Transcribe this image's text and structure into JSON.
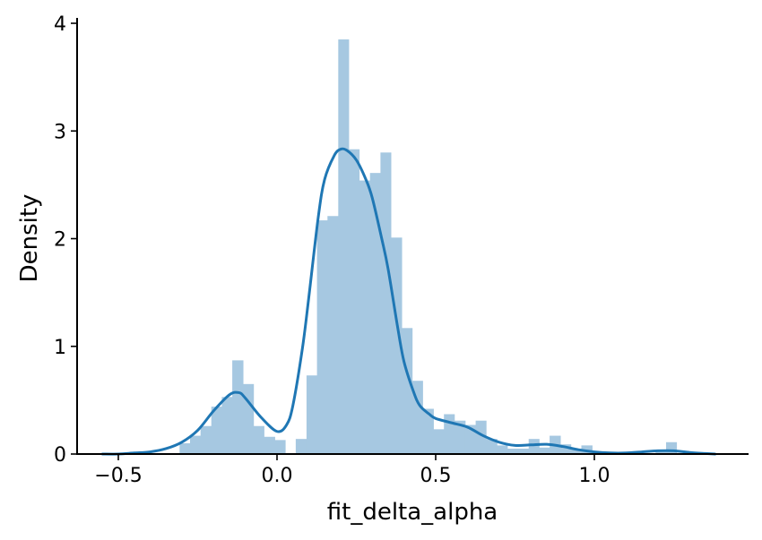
{
  "chart_data": {
    "type": "histogram",
    "title": "",
    "xlabel": "fit_delta_alpha",
    "ylabel": "Density",
    "xlim": [
      -0.6,
      1.5
    ],
    "ylim": [
      0,
      4.05
    ],
    "grid": false,
    "legend": "none",
    "x_ticks": [
      -0.5,
      0.0,
      0.5,
      1.0
    ],
    "x_tick_labels": [
      "−0.5",
      "0.0",
      "0.5",
      "1.0"
    ],
    "y_ticks": [
      0,
      1,
      2,
      3,
      4
    ],
    "y_tick_labels": [
      "0",
      "1",
      "2",
      "3",
      "4"
    ],
    "colors": {
      "bars": "#a6c8e1",
      "kde": "#1f77b4",
      "axes": "#000000"
    },
    "histogram": {
      "bin_width": 0.0333,
      "bins": [
        {
          "x0": -0.307,
          "x1": -0.274,
          "density": 0.1
        },
        {
          "x0": -0.274,
          "x1": -0.241,
          "density": 0.17
        },
        {
          "x0": -0.241,
          "x1": -0.207,
          "density": 0.26
        },
        {
          "x0": -0.207,
          "x1": -0.174,
          "density": 0.44
        },
        {
          "x0": -0.174,
          "x1": -0.141,
          "density": 0.53
        },
        {
          "x0": -0.141,
          "x1": -0.107,
          "density": 0.87
        },
        {
          "x0": -0.107,
          "x1": -0.074,
          "density": 0.65
        },
        {
          "x0": -0.074,
          "x1": -0.041,
          "density": 0.26
        },
        {
          "x0": -0.041,
          "x1": -0.007,
          "density": 0.16
        },
        {
          "x0": -0.007,
          "x1": 0.026,
          "density": 0.13
        },
        {
          "x0": 0.026,
          "x1": 0.059,
          "density": 0.0
        },
        {
          "x0": 0.059,
          "x1": 0.093,
          "density": 0.14
        },
        {
          "x0": 0.093,
          "x1": 0.126,
          "density": 0.73
        },
        {
          "x0": 0.126,
          "x1": 0.159,
          "density": 2.17
        },
        {
          "x0": 0.159,
          "x1": 0.193,
          "density": 2.21
        },
        {
          "x0": 0.193,
          "x1": 0.226,
          "density": 3.85
        },
        {
          "x0": 0.226,
          "x1": 0.259,
          "density": 2.83
        },
        {
          "x0": 0.259,
          "x1": 0.293,
          "density": 2.54
        },
        {
          "x0": 0.293,
          "x1": 0.326,
          "density": 2.61
        },
        {
          "x0": 0.326,
          "x1": 0.359,
          "density": 2.8
        },
        {
          "x0": 0.359,
          "x1": 0.393,
          "density": 2.01
        },
        {
          "x0": 0.393,
          "x1": 0.426,
          "density": 1.17
        },
        {
          "x0": 0.426,
          "x1": 0.459,
          "density": 0.68
        },
        {
          "x0": 0.459,
          "x1": 0.493,
          "density": 0.42
        },
        {
          "x0": 0.493,
          "x1": 0.526,
          "density": 0.23
        },
        {
          "x0": 0.526,
          "x1": 0.559,
          "density": 0.37
        },
        {
          "x0": 0.559,
          "x1": 0.593,
          "density": 0.31
        },
        {
          "x0": 0.593,
          "x1": 0.626,
          "density": 0.27
        },
        {
          "x0": 0.626,
          "x1": 0.659,
          "density": 0.31
        },
        {
          "x0": 0.659,
          "x1": 0.693,
          "density": 0.14
        },
        {
          "x0": 0.693,
          "x1": 0.726,
          "density": 0.08
        },
        {
          "x0": 0.726,
          "x1": 0.759,
          "density": 0.05
        },
        {
          "x0": 0.759,
          "x1": 0.793,
          "density": 0.05
        },
        {
          "x0": 0.793,
          "x1": 0.826,
          "density": 0.14
        },
        {
          "x0": 0.826,
          "x1": 0.859,
          "density": 0.06
        },
        {
          "x0": 0.859,
          "x1": 0.893,
          "density": 0.17
        },
        {
          "x0": 0.893,
          "x1": 0.926,
          "density": 0.09
        },
        {
          "x0": 0.926,
          "x1": 0.959,
          "density": 0.05
        },
        {
          "x0": 0.959,
          "x1": 0.993,
          "density": 0.08
        },
        {
          "x0": 0.993,
          "x1": 1.026,
          "density": 0.0
        },
        {
          "x0": 1.026,
          "x1": 1.059,
          "density": 0.0
        },
        {
          "x0": 1.059,
          "x1": 1.093,
          "density": 0.0
        },
        {
          "x0": 1.093,
          "x1": 1.126,
          "density": 0.0
        },
        {
          "x0": 1.126,
          "x1": 1.159,
          "density": 0.0
        },
        {
          "x0": 1.159,
          "x1": 1.193,
          "density": 0.0
        },
        {
          "x0": 1.193,
          "x1": 1.226,
          "density": 0.02
        },
        {
          "x0": 1.226,
          "x1": 1.259,
          "density": 0.11
        }
      ]
    },
    "kde": {
      "x": [
        -0.55,
        -0.5,
        -0.45,
        -0.4,
        -0.35,
        -0.3,
        -0.25,
        -0.2,
        -0.15,
        -0.12,
        -0.1,
        -0.05,
        0.0,
        0.03,
        0.05,
        0.08,
        0.1,
        0.13,
        0.15,
        0.18,
        0.2,
        0.22,
        0.25,
        0.28,
        0.3,
        0.33,
        0.35,
        0.38,
        0.4,
        0.43,
        0.45,
        0.48,
        0.5,
        0.55,
        0.6,
        0.65,
        0.7,
        0.75,
        0.8,
        0.85,
        0.9,
        0.95,
        1.0,
        1.05,
        1.1,
        1.15,
        1.2,
        1.25,
        1.3,
        1.35,
        1.38
      ],
      "y": [
        0.0,
        0.0,
        0.01,
        0.02,
        0.05,
        0.11,
        0.22,
        0.4,
        0.55,
        0.57,
        0.52,
        0.34,
        0.21,
        0.27,
        0.45,
        0.98,
        1.45,
        2.2,
        2.55,
        2.77,
        2.83,
        2.82,
        2.73,
        2.55,
        2.38,
        2.0,
        1.72,
        1.18,
        0.86,
        0.58,
        0.45,
        0.37,
        0.33,
        0.29,
        0.25,
        0.17,
        0.11,
        0.08,
        0.085,
        0.09,
        0.07,
        0.04,
        0.02,
        0.01,
        0.01,
        0.02,
        0.03,
        0.03,
        0.015,
        0.005,
        0.0
      ]
    }
  }
}
